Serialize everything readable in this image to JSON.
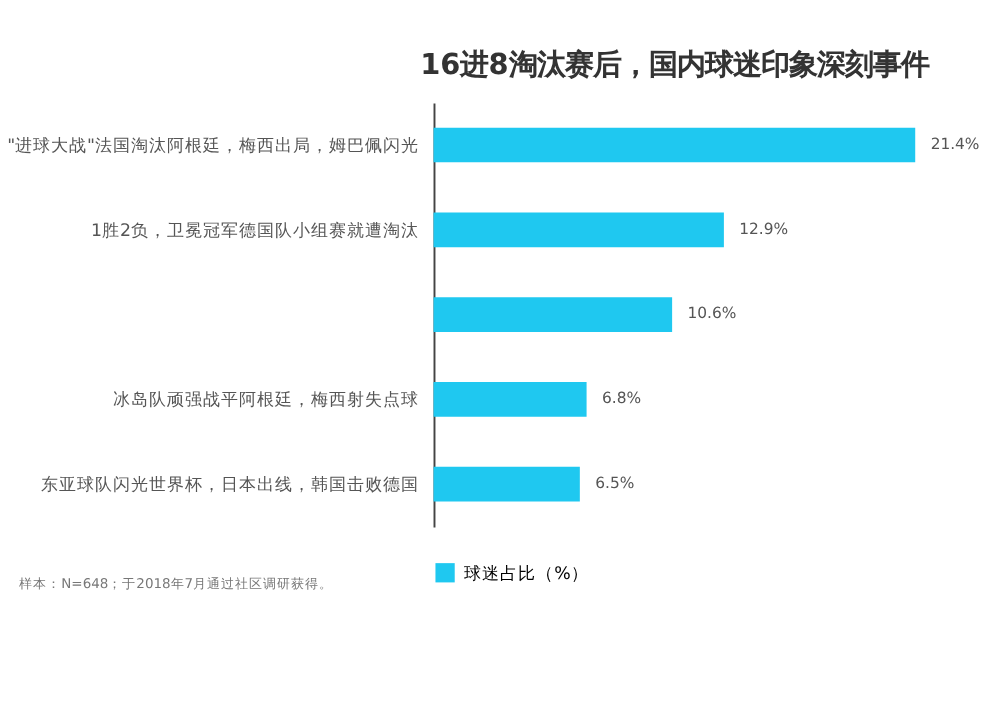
{
  "chart_data": {
    "type": "bar",
    "orientation": "horizontal",
    "title": "16进8淘汰赛后，国内球迷印象深刻事件",
    "categories": [
      "\"进球大战\"法国淘汰阿根廷，梅西出局，姆巴佩闪光",
      "1胜2负，卫冕冠军德国队小组赛就遭淘汰",
      null,
      "冰岛队顽强战平阿根廷，梅西射失点球",
      "东亚球队闪光世界杯，日本出线，韩国击败德国"
    ],
    "series": [
      {
        "name": "球迷占比（%）",
        "color": "#1fc8f0",
        "values": [
          21.4,
          12.9,
          10.6,
          6.8,
          6.5
        ],
        "value_labels": [
          "21.4%",
          "12.9%",
          "10.6%",
          "6.8%",
          "6.5%"
        ]
      }
    ],
    "legend": "bottom",
    "annotations": [
      "样本：N=648；于2018年7月通过社区调研获得。"
    ]
  }
}
